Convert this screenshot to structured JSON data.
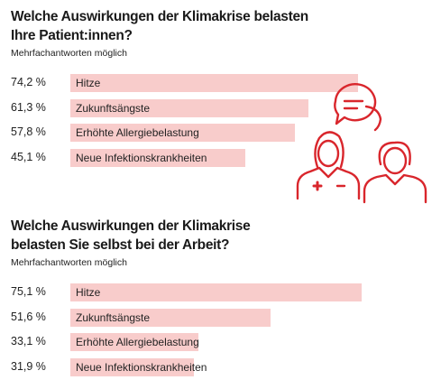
{
  "chart_data": [
    {
      "type": "bar",
      "title": "Welche Auswirkungen der Klimakrise belasten\nIhre Patient:innen?",
      "subtitle": "Mehrfachantworten möglich",
      "categories": [
        "Hitze",
        "Zukunftsängste",
        "Erhöhte Allergiebelastung",
        "Neue Infektionskrankheiten"
      ],
      "values": [
        74.2,
        61.3,
        57.8,
        45.1
      ],
      "value_labels": [
        "74,2 %",
        "61,3 %",
        "57,8 %",
        "45,1 %"
      ],
      "unit": "%",
      "ylim": [
        0,
        100
      ],
      "grid": false,
      "bar_color": "#f8cccb"
    },
    {
      "type": "bar",
      "title": "Welche Auswirkungen der Klimakrise\nbelasten Sie selbst bei der Arbeit?",
      "subtitle": "Mehrfachantworten möglich",
      "categories": [
        "Hitze",
        "Zukunftsängste",
        "Erhöhte Allergiebelastung",
        "Neue Infektionskrankheiten"
      ],
      "values": [
        75.1,
        51.6,
        33.1,
        31.9
      ],
      "value_labels": [
        "75,1 %",
        "51,6 %",
        "33,1 %",
        "31,9 %"
      ],
      "unit": "%",
      "ylim": [
        0,
        100
      ],
      "grid": false,
      "bar_color": "#f8cccb"
    }
  ],
  "illustration": {
    "icon": "doctor-patient-conversation-icon",
    "color": "#d9262c"
  }
}
